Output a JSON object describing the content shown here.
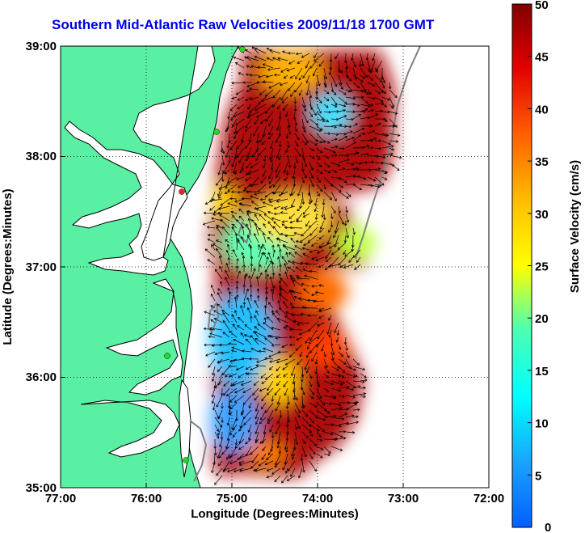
{
  "title": "Southern Mid-Atlantic Raw Velocities 2009/11/18 1700 GMT",
  "x_axis": {
    "label": "Longitude (Degrees:Minutes)",
    "ticks": [
      "77:00",
      "76:00",
      "75:00",
      "74:00",
      "73:00",
      "72:00"
    ]
  },
  "y_axis": {
    "label": "Latitude (Degrees:Minutes)",
    "ticks": [
      "39:00",
      "38:00",
      "37:00",
      "36:00",
      "35:00"
    ]
  },
  "colorbar": {
    "label": "Surface Velocity (cm/s)",
    "ticks": [
      "50",
      "45",
      "40",
      "35",
      "30",
      "25",
      "20",
      "15",
      "10",
      "5",
      "0"
    ],
    "min": 0,
    "max": 50,
    "colormap": "jet"
  },
  "map": {
    "lon_range": [
      -77,
      -72
    ],
    "lat_range": [
      35,
      39
    ],
    "land_color": "#5af0a4",
    "water_color": "#ffffff",
    "coastline_color": "#000000",
    "isobath_color": "#808080",
    "grid": "dotted",
    "station_color": "#22dd22"
  },
  "chart_data": {
    "type": "heatmap",
    "title": "Southern Mid-Atlantic Raw Velocities 2009/11/18 1700 GMT",
    "xlabel": "Longitude (Degrees:Minutes)",
    "ylabel": "Latitude (Degrees:Minutes)",
    "xlim": [
      -77,
      -72
    ],
    "ylim": [
      35,
      39
    ],
    "value_label": "Surface Velocity (cm/s)",
    "value_range": [
      0,
      50
    ]
  }
}
